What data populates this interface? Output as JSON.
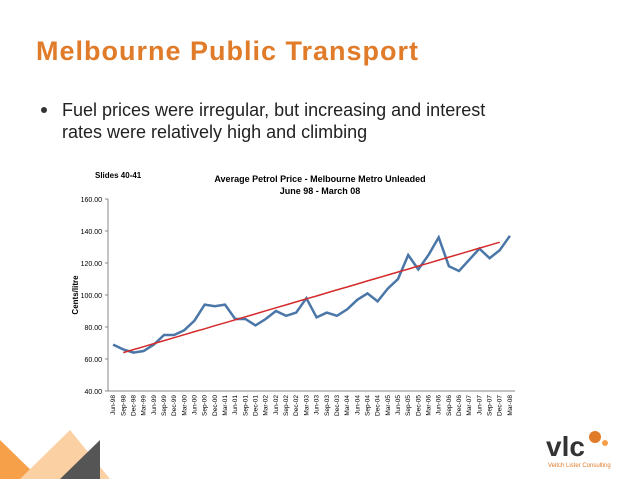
{
  "slide": {
    "title": "Melbourne Public Transport",
    "bullet": [
      "Fuel prices were irregular, but increasing and interest",
      "rates were relatively high and climbing"
    ]
  },
  "chart_data": {
    "type": "line",
    "note": "Slides 40-41",
    "title": "Average Petrol Price - Melbourne Metro Unleaded",
    "subtitle": "June 98 - March 08",
    "y_label": "Cents/litre",
    "categories": [
      "Jun-98",
      "Sep-98",
      "Dec-98",
      "Mar-99",
      "Jun-99",
      "Sep-99",
      "Dec-99",
      "Mar-00",
      "Jun-00",
      "Sep-00",
      "Dec-00",
      "Mar-01",
      "Jun-01",
      "Sep-01",
      "Dec-01",
      "Mar-02",
      "Jun-02",
      "Sep-02",
      "Dec-02",
      "Mar-03",
      "Jun-03",
      "Sep-03",
      "Dec-03",
      "Mar-04",
      "Jun-04",
      "Sep-04",
      "Dec-04",
      "Mar-05",
      "Jun-05",
      "Sep-05",
      "Dec-05",
      "Mar-06",
      "Jun-06",
      "Sep-06",
      "Dec-06",
      "Mar-07",
      "Jun-07",
      "Sep-07",
      "Dec-07",
      "Mar-08"
    ],
    "series": [
      {
        "color": "#4a76a8",
        "values": [
          69,
          66,
          64,
          65,
          69,
          75,
          75,
          78,
          84,
          94,
          93,
          94,
          85,
          85,
          81,
          85,
          90,
          87,
          89,
          98,
          86,
          89,
          87,
          91,
          97,
          101,
          96,
          104,
          110,
          125,
          116,
          125,
          136,
          118,
          115,
          122,
          129,
          123,
          128,
          137
        ]
      },
      {
        "color": "#d42a2a",
        "values": [
          null,
          64,
          65.9,
          67.7,
          69.6,
          71.5,
          73.3,
          75.2,
          77.1,
          78.9,
          80.8,
          82.6,
          84.5,
          86.4,
          88.2,
          90.1,
          92,
          93.8,
          95.7,
          97.6,
          99.4,
          101.3,
          103.2,
          105,
          106.9,
          108.8,
          110.6,
          112.5,
          114.4,
          116.2,
          118.1,
          119.9,
          121.8,
          123.7,
          125.5,
          127.4,
          129.3,
          131.1,
          133,
          null
        ]
      }
    ],
    "ylim": [
      40,
      160
    ],
    "yticks": [
      {
        "value": 40,
        "label": "40.00"
      },
      {
        "value": 60,
        "label": "60.00"
      },
      {
        "value": 80,
        "label": "80.00"
      },
      {
        "value": 100,
        "label": "100.00"
      },
      {
        "value": 120,
        "label": "120.00"
      },
      {
        "value": 140,
        "label": "140.00"
      },
      {
        "value": 160,
        "label": "160.00"
      }
    ]
  },
  "logo": {
    "text": "vlc",
    "sub": "Veitch Lister Consulting"
  }
}
